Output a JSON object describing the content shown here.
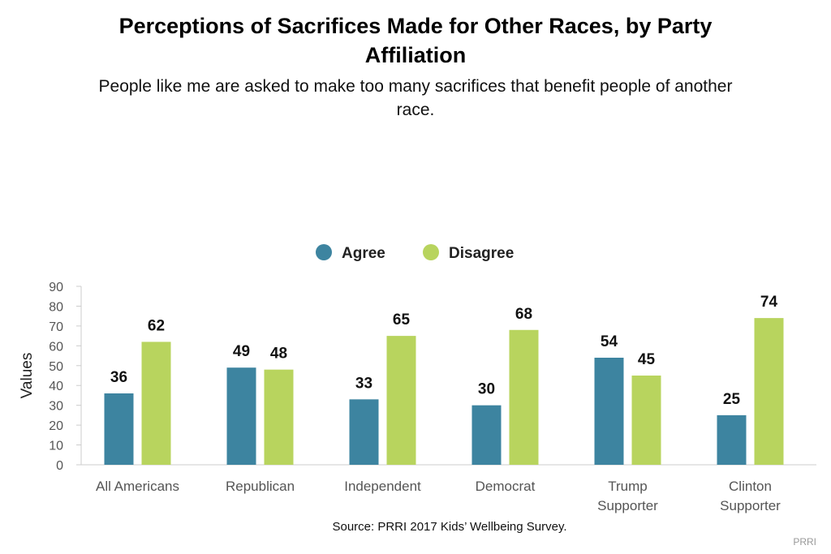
{
  "chart_data": {
    "type": "bar",
    "title_lines": [
      "Perceptions of Sacrifices Made for Other Races, by Party",
      "Affiliation"
    ],
    "subtitle_lines": [
      "People like me are asked to make too many sacrifices that benefit people of another",
      "race."
    ],
    "ylabel": "Values",
    "xlabel": "",
    "ylim": [
      0,
      90
    ],
    "yticks": [
      "0",
      "10",
      "20",
      "30",
      "40",
      "50",
      "60",
      "70",
      "80",
      "90"
    ],
    "categories": [
      [
        "All Americans"
      ],
      [
        "Republican"
      ],
      [
        "Independent"
      ],
      [
        "Democrat"
      ],
      [
        "Trump",
        "Supporter"
      ],
      [
        "Clinton",
        "Supporter"
      ]
    ],
    "series": [
      {
        "name": "Agree",
        "color": "#3d84a0",
        "values": [
          36,
          49,
          33,
          30,
          54,
          25
        ]
      },
      {
        "name": "Disagree",
        "color": "#b8d45e",
        "values": [
          62,
          48,
          65,
          68,
          45,
          74
        ]
      }
    ],
    "legend_position": "top-center",
    "grid": false,
    "source": "Source: PRRI 2017 Kids’ Wellbeing Survey.",
    "credit": "PRRI"
  }
}
